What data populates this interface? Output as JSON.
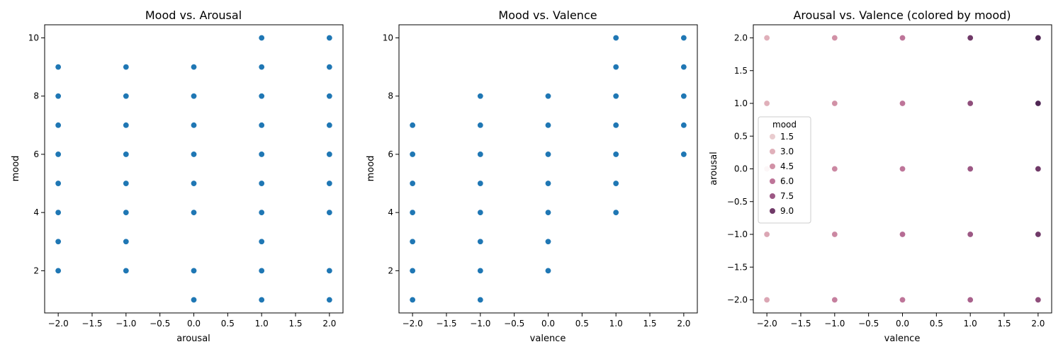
{
  "colors": {
    "point": "#1f77b4",
    "mood_palette": [
      "#ecd5d6",
      "#e2b4bd",
      "#d08fa5",
      "#b96e96",
      "#8a4a78",
      "#4f2653"
    ]
  },
  "chart_data": [
    {
      "type": "scatter",
      "title": "Mood vs. Arousal",
      "xlabel": "arousal",
      "ylabel": "mood",
      "xlim": [
        -2.2,
        2.2
      ],
      "ylim": [
        0.55,
        10.45
      ],
      "xticks": [
        -2.0,
        -1.5,
        -1.0,
        -0.5,
        0.0,
        0.5,
        1.0,
        1.5,
        2.0
      ],
      "xtick_labels": [
        "−2.0",
        "−1.5",
        "−1.0",
        "−0.5",
        "0.0",
        "0.5",
        "1.0",
        "1.5",
        "2.0"
      ],
      "yticks": [
        2,
        4,
        6,
        8,
        10
      ],
      "ytick_labels": [
        "2",
        "4",
        "6",
        "8",
        "10"
      ],
      "grid": false,
      "series": [
        {
          "points": [
            [
              -2,
              2
            ],
            [
              -2,
              3
            ],
            [
              -2,
              4
            ],
            [
              -2,
              5
            ],
            [
              -2,
              6
            ],
            [
              -2,
              7
            ],
            [
              -2,
              8
            ],
            [
              -2,
              9
            ],
            [
              -1,
              2
            ],
            [
              -1,
              3
            ],
            [
              -1,
              4
            ],
            [
              -1,
              5
            ],
            [
              -1,
              6
            ],
            [
              -1,
              7
            ],
            [
              -1,
              8
            ],
            [
              -1,
              9
            ],
            [
              0,
              1
            ],
            [
              0,
              2
            ],
            [
              0,
              4
            ],
            [
              0,
              5
            ],
            [
              0,
              6
            ],
            [
              0,
              7
            ],
            [
              0,
              8
            ],
            [
              0,
              9
            ],
            [
              1,
              1
            ],
            [
              1,
              2
            ],
            [
              1,
              3
            ],
            [
              1,
              4
            ],
            [
              1,
              5
            ],
            [
              1,
              6
            ],
            [
              1,
              7
            ],
            [
              1,
              8
            ],
            [
              1,
              9
            ],
            [
              1,
              10
            ],
            [
              2,
              1
            ],
            [
              2,
              2
            ],
            [
              2,
              4
            ],
            [
              2,
              5
            ],
            [
              2,
              6
            ],
            [
              2,
              7
            ],
            [
              2,
              8
            ],
            [
              2,
              9
            ],
            [
              2,
              10
            ]
          ]
        }
      ]
    },
    {
      "type": "scatter",
      "title": "Mood vs. Valence",
      "xlabel": "valence",
      "ylabel": "mood",
      "xlim": [
        -2.2,
        2.2
      ],
      "ylim": [
        0.55,
        10.45
      ],
      "xticks": [
        -2.0,
        -1.5,
        -1.0,
        -0.5,
        0.0,
        0.5,
        1.0,
        1.5,
        2.0
      ],
      "xtick_labels": [
        "−2.0",
        "−1.5",
        "−1.0",
        "−0.5",
        "0.0",
        "0.5",
        "1.0",
        "1.5",
        "2.0"
      ],
      "yticks": [
        2,
        4,
        6,
        8,
        10
      ],
      "ytick_labels": [
        "2",
        "4",
        "6",
        "8",
        "10"
      ],
      "grid": false,
      "series": [
        {
          "points": [
            [
              -2,
              1
            ],
            [
              -2,
              2
            ],
            [
              -2,
              3
            ],
            [
              -2,
              4
            ],
            [
              -2,
              5
            ],
            [
              -2,
              6
            ],
            [
              -2,
              7
            ],
            [
              -1,
              1
            ],
            [
              -1,
              2
            ],
            [
              -1,
              3
            ],
            [
              -1,
              4
            ],
            [
              -1,
              5
            ],
            [
              -1,
              6
            ],
            [
              -1,
              7
            ],
            [
              -1,
              8
            ],
            [
              0,
              2
            ],
            [
              0,
              3
            ],
            [
              0,
              4
            ],
            [
              0,
              5
            ],
            [
              0,
              6
            ],
            [
              0,
              7
            ],
            [
              0,
              8
            ],
            [
              1,
              4
            ],
            [
              1,
              5
            ],
            [
              1,
              6
            ],
            [
              1,
              7
            ],
            [
              1,
              8
            ],
            [
              1,
              9
            ],
            [
              1,
              10
            ],
            [
              2,
              6
            ],
            [
              2,
              7
            ],
            [
              2,
              8
            ],
            [
              2,
              9
            ],
            [
              2,
              10
            ]
          ]
        }
      ]
    },
    {
      "type": "scatter",
      "title": "Arousal vs. Valence (colored by mood)",
      "xlabel": "valence",
      "ylabel": "arousal",
      "xlim": [
        -2.2,
        2.2
      ],
      "ylim": [
        -2.2,
        2.2
      ],
      "xticks": [
        -2.0,
        -1.5,
        -1.0,
        -0.5,
        0.0,
        0.5,
        1.0,
        1.5,
        2.0
      ],
      "xtick_labels": [
        "−2.0",
        "−1.5",
        "−1.0",
        "−0.5",
        "0.0",
        "0.5",
        "1.0",
        "1.5",
        "2.0"
      ],
      "yticks": [
        -2.0,
        -1.5,
        -1.0,
        -0.5,
        0.0,
        0.5,
        1.0,
        1.5,
        2.0
      ],
      "ytick_labels": [
        "−2.0",
        "−1.5",
        "−1.0",
        "−0.5",
        "0.0",
        "0.5",
        "1.0",
        "1.5",
        "2.0"
      ],
      "grid": false,
      "legend": {
        "title": "mood",
        "placement": "center-left",
        "entries": [
          "1.5",
          "3.0",
          "4.5",
          "6.0",
          "7.5",
          "9.0"
        ]
      },
      "series": [
        {
          "points": [
            [
              -2,
              2,
              3
            ],
            [
              -2,
              1,
              3
            ],
            [
              -2,
              -1,
              3.5
            ],
            [
              -2,
              -2,
              3.5
            ],
            [
              -2,
              0,
              2
            ],
            [
              -1,
              2,
              4.5
            ],
            [
              -1,
              1,
              4.5
            ],
            [
              -1,
              0,
              5
            ],
            [
              -1,
              -1,
              5
            ],
            [
              -1,
              -2,
              5.5
            ],
            [
              0,
              2,
              6
            ],
            [
              0,
              1,
              6
            ],
            [
              0,
              0,
              6
            ],
            [
              0,
              -1,
              6.5
            ],
            [
              0,
              -2,
              6
            ],
            [
              1,
              2,
              9
            ],
            [
              1,
              1,
              8
            ],
            [
              1,
              0,
              7.5
            ],
            [
              1,
              -1,
              7.5
            ],
            [
              1,
              -2,
              7
            ],
            [
              2,
              2,
              10
            ],
            [
              2,
              1,
              10
            ],
            [
              2,
              0,
              9
            ],
            [
              2,
              -1,
              9
            ],
            [
              2,
              -2,
              8
            ]
          ]
        }
      ]
    }
  ]
}
